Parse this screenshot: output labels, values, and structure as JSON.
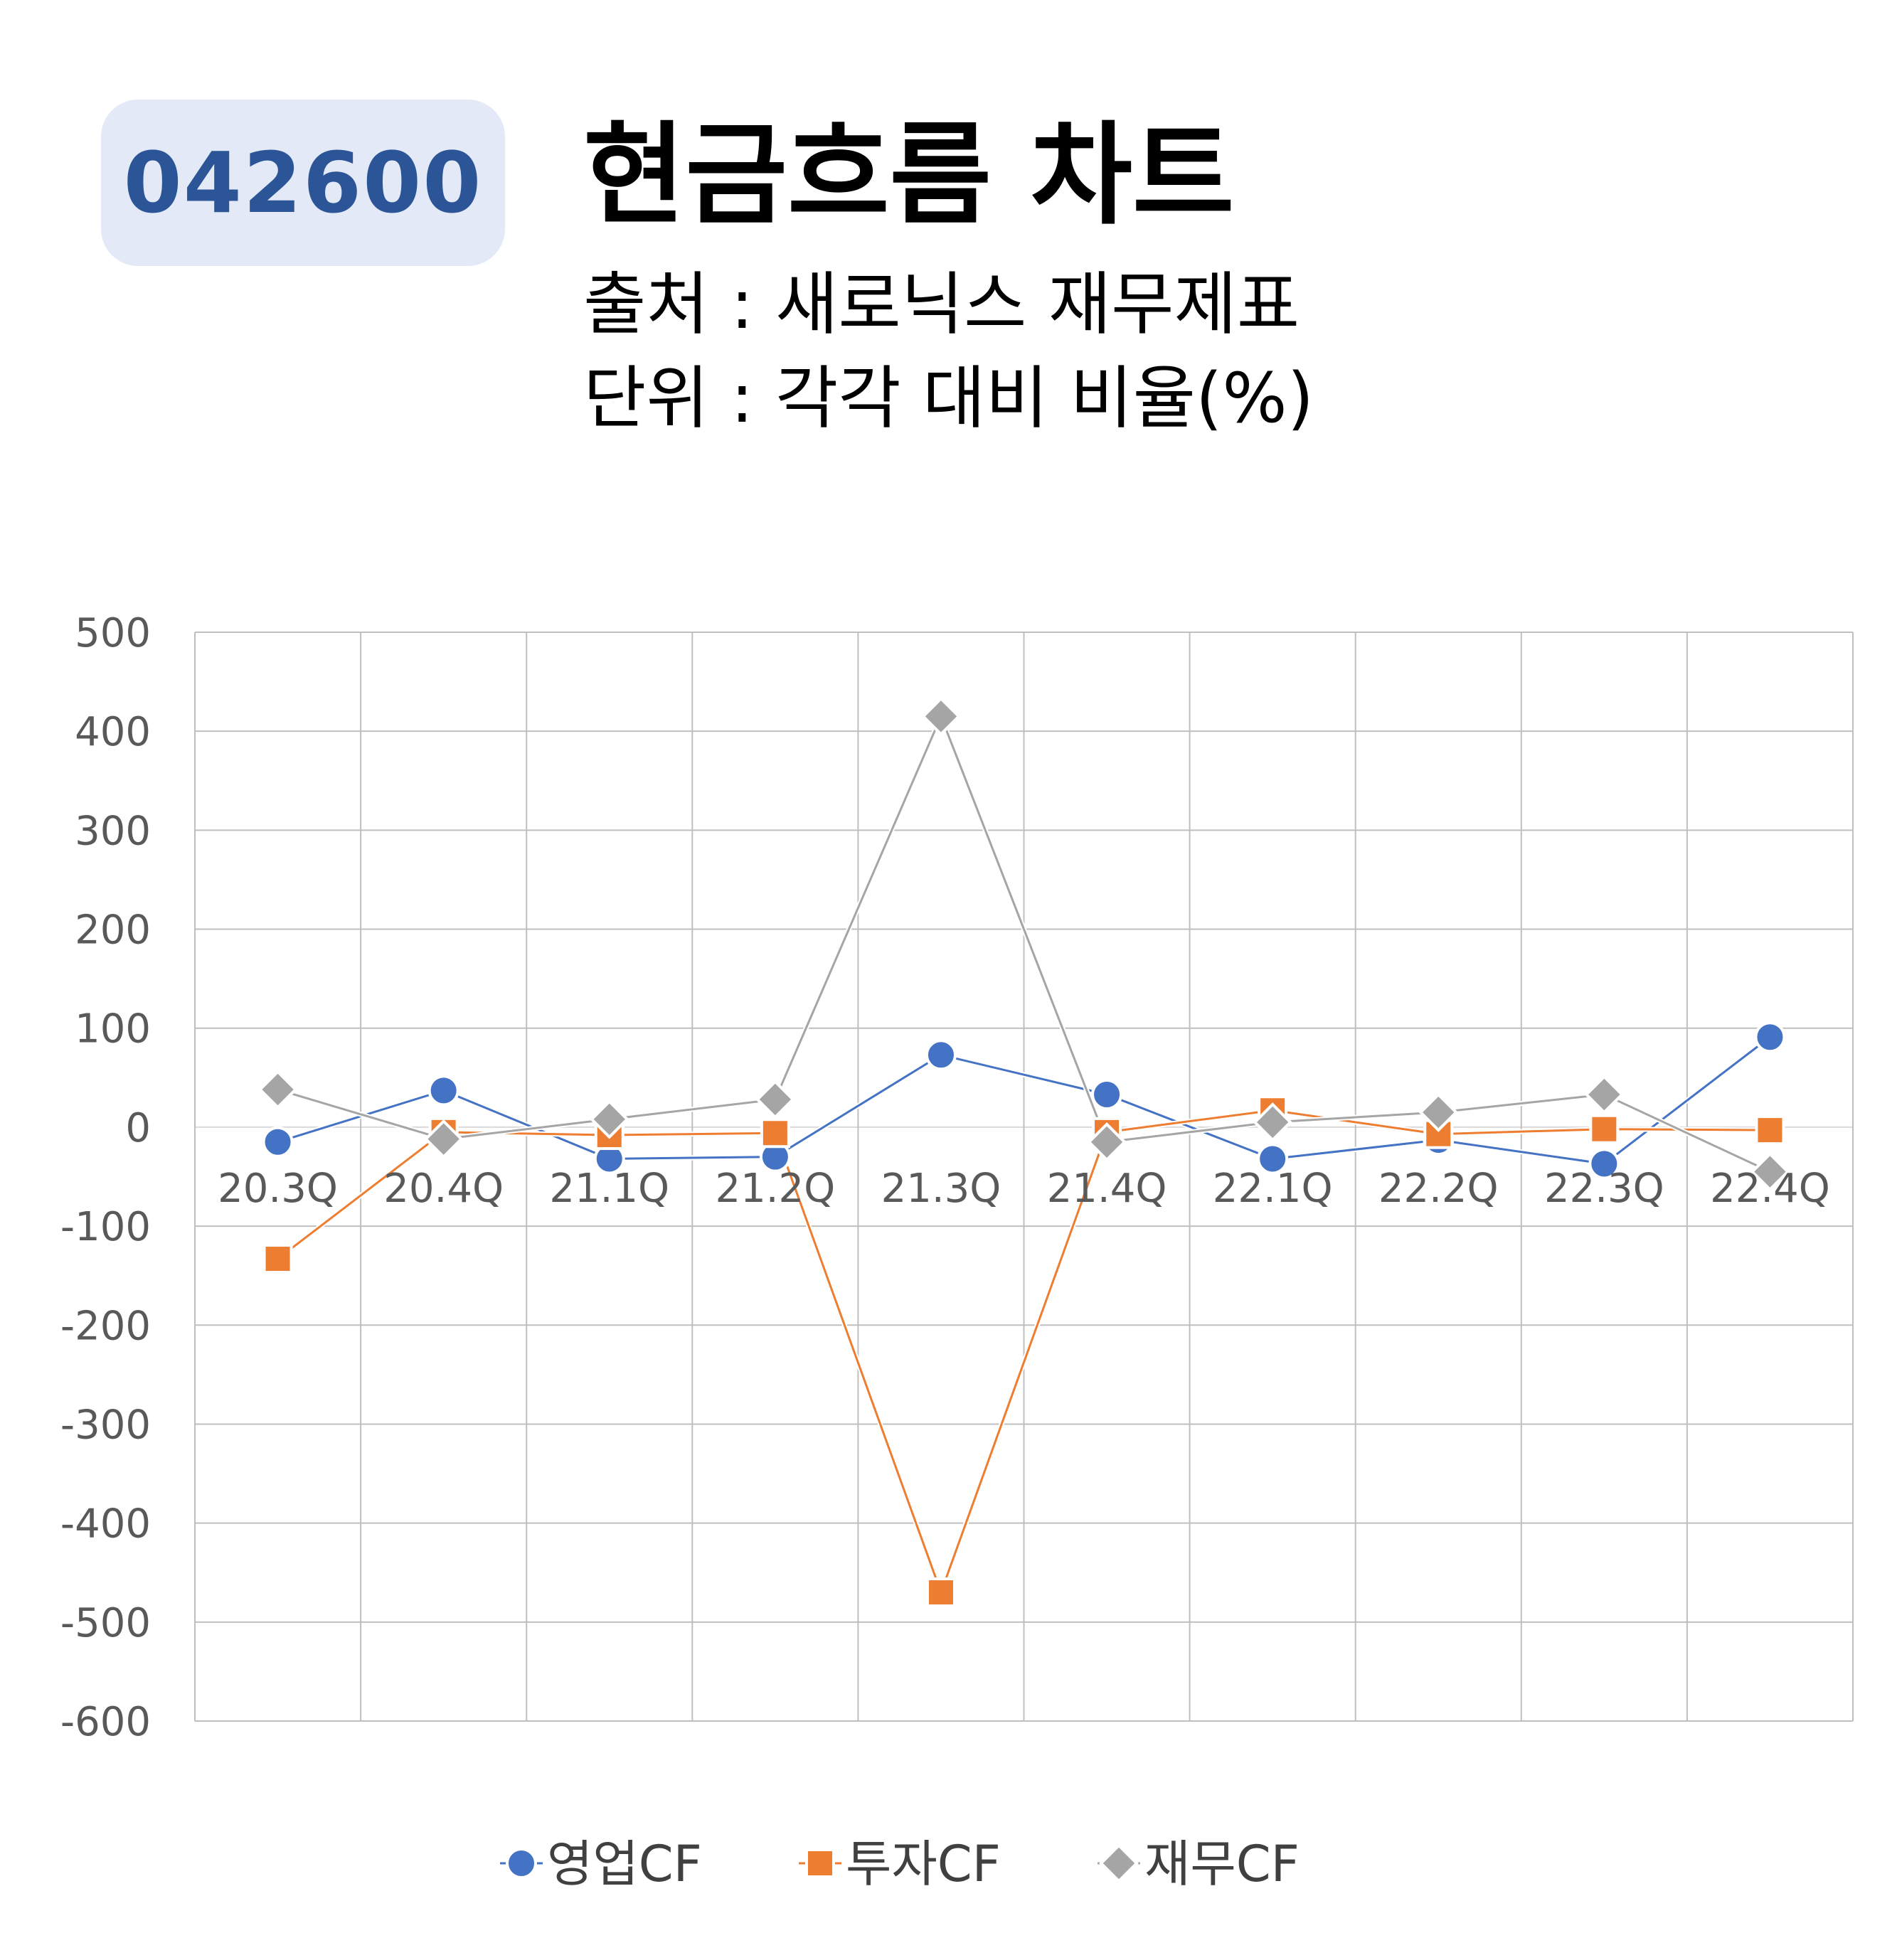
{
  "header": {
    "code": "042600",
    "title": "현금흐름 차트",
    "source": "출처 : 새로닉스 재무제표",
    "unit": "단위 : 각각 대비 비율(%)"
  },
  "colors": {
    "operating": "#4472c4",
    "investing": "#ed7d31",
    "financing": "#a5a5a5",
    "grid": "#bfbfbf",
    "badge_bg": "#e3e9f6",
    "badge_text": "#2c5597"
  },
  "chart_data": {
    "type": "line",
    "categories": [
      "20.3Q",
      "20.4Q",
      "21.1Q",
      "21.2Q",
      "21.3Q",
      "21.4Q",
      "22.1Q",
      "22.2Q",
      "22.3Q",
      "22.4Q"
    ],
    "ylim": [
      -600,
      500
    ],
    "yticks": [
      500,
      400,
      300,
      200,
      100,
      0,
      -100,
      -200,
      -300,
      -400,
      -500,
      -600
    ],
    "grid": true,
    "legend_position": "bottom",
    "series": [
      {
        "name": "영업CF",
        "marker": "circle",
        "color": "#4472c4",
        "values": [
          -15,
          37,
          -32,
          -30,
          73,
          33,
          -32,
          -13,
          -37,
          91
        ]
      },
      {
        "name": "투자CF",
        "marker": "square",
        "color": "#ed7d31",
        "values": [
          -133,
          -5,
          -8,
          -6,
          -470,
          -5,
          17,
          -7,
          -2,
          -3
        ]
      },
      {
        "name": "재무CF",
        "marker": "diamond",
        "color": "#a5a5a5",
        "values": [
          38,
          -12,
          8,
          28,
          415,
          -15,
          5,
          15,
          33,
          -45
        ]
      }
    ]
  }
}
